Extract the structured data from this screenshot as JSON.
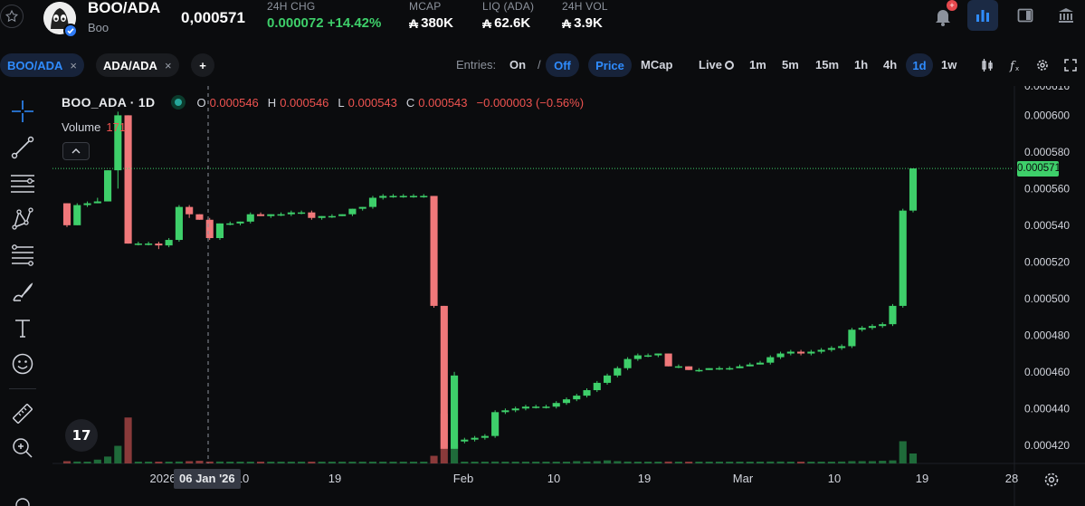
{
  "header": {
    "pair_name": "BOO/ADA",
    "pair_sub": "Boo",
    "price": "0,000571",
    "stats": [
      {
        "label": "24H CHG",
        "value": "0.000072 +14.42%"
      },
      {
        "label": "MCAP",
        "value": "380K"
      },
      {
        "label": "LIQ (ADA)",
        "value": "62.6K"
      },
      {
        "label": "24H VOL",
        "value": "3.9K"
      }
    ],
    "ada_symbol": "₳",
    "notification_badge": "+"
  },
  "toolbar": {
    "tabs": [
      {
        "label": "BOO/ADA",
        "close": "×"
      },
      {
        "label": "ADA/ADA",
        "close": "×"
      }
    ],
    "add_tab": "+",
    "entries_label": "Entries:",
    "entries_on": "On",
    "entries_sep": "/",
    "entries_off": "Off",
    "price_label": "Price",
    "mcap_label": "MCap",
    "live_label": "Live",
    "timeframes": [
      "1m",
      "5m",
      "15m",
      "1h",
      "4h",
      "1d",
      "1w"
    ],
    "active_timeframe": "1d"
  },
  "chart": {
    "symbol": "BOO_ADA · 1D",
    "ohlc": {
      "o_label": "O",
      "o": "0.000546",
      "h_label": "H",
      "h": "0.000546",
      "l_label": "L",
      "l": "0.000543",
      "c_label": "C",
      "c": "0.000543",
      "change": "−0.000003 (−0.56%)"
    },
    "volume_label": "Volume",
    "volume_value": "171",
    "last_price_tag": "0.000571",
    "crosshair_date": "06 Jan '26",
    "top_axis_label": "0.000616",
    "colors": {
      "up": "#3ecf6a",
      "down": "#f0787a",
      "up_vol": "#1f6b3a",
      "down_vol": "#8a3a3a"
    }
  },
  "chart_data": {
    "type": "candlestick",
    "y_tick_labels": [
      "0.000600",
      "0.000580",
      "0.000560",
      "0.000540",
      "0.000520",
      "0.000500",
      "0.000480",
      "0.000460",
      "0.000440",
      "0.000420"
    ],
    "x_tick_labels": [
      "2026",
      "10",
      "19",
      "Feb",
      "10",
      "19",
      "Mar",
      "10",
      "19",
      "28"
    ],
    "ylim": [
      0.00041,
      0.000616
    ],
    "series": [
      {
        "o": 0.000552,
        "h": 0.000552,
        "l": 0.000539,
        "c": 0.00054,
        "v": 6
      },
      {
        "o": 0.00054,
        "h": 0.000552,
        "l": 0.00054,
        "c": 0.000551,
        "v": 5
      },
      {
        "o": 0.000551,
        "h": 0.000553,
        "l": 0.00055,
        "c": 0.000552,
        "v": 4
      },
      {
        "o": 0.000552,
        "h": 0.000555,
        "l": 0.000552,
        "c": 0.000553,
        "v": 10
      },
      {
        "o": 0.000553,
        "h": 0.00057,
        "l": 0.000553,
        "c": 0.00057,
        "v": 18
      },
      {
        "o": 0.00057,
        "h": 0.000602,
        "l": 0.00056,
        "c": 0.0006,
        "v": 46
      },
      {
        "o": 0.0006,
        "h": 0.0006,
        "l": 0.00053,
        "c": 0.00053,
        "v": 120
      },
      {
        "o": 0.00053,
        "h": 0.000531,
        "l": 0.000529,
        "c": 0.00053,
        "v": 4
      },
      {
        "o": 0.00053,
        "h": 0.000531,
        "l": 0.000529,
        "c": 0.00053,
        "v": 3
      },
      {
        "o": 0.00053,
        "h": 0.000531,
        "l": 0.000527,
        "c": 0.000529,
        "v": 4
      },
      {
        "o": 0.000529,
        "h": 0.000533,
        "l": 0.000528,
        "c": 0.000532,
        "v": 4
      },
      {
        "o": 0.000532,
        "h": 0.000551,
        "l": 0.000531,
        "c": 0.00055,
        "v": 5
      },
      {
        "o": 0.00055,
        "h": 0.000551,
        "l": 0.000544,
        "c": 0.000546,
        "v": 6
      },
      {
        "o": 0.000546,
        "h": 0.000546,
        "l": 0.000543,
        "c": 0.000543,
        "v": 7
      },
      {
        "o": 0.000543,
        "h": 0.000544,
        "l": 0.000532,
        "c": 0.000533,
        "v": 5
      },
      {
        "o": 0.000533,
        "h": 0.000541,
        "l": 0.000532,
        "c": 0.000541,
        "v": 5
      },
      {
        "o": 0.000541,
        "h": 0.000542,
        "l": 0.00054,
        "c": 0.000541,
        "v": 3
      },
      {
        "o": 0.000541,
        "h": 0.000542,
        "l": 0.00054,
        "c": 0.000542,
        "v": 3
      },
      {
        "o": 0.000542,
        "h": 0.000547,
        "l": 0.000541,
        "c": 0.000546,
        "v": 4
      },
      {
        "o": 0.000546,
        "h": 0.000547,
        "l": 0.000545,
        "c": 0.000545,
        "v": 3
      },
      {
        "o": 0.000545,
        "h": 0.000546,
        "l": 0.000544,
        "c": 0.000546,
        "v": 3
      },
      {
        "o": 0.000546,
        "h": 0.000547,
        "l": 0.000545,
        "c": 0.000546,
        "v": 3
      },
      {
        "o": 0.000546,
        "h": 0.000548,
        "l": 0.000545,
        "c": 0.000547,
        "v": 3
      },
      {
        "o": 0.000547,
        "h": 0.000548,
        "l": 0.000546,
        "c": 0.000547,
        "v": 3
      },
      {
        "o": 0.000547,
        "h": 0.000548,
        "l": 0.000543,
        "c": 0.000544,
        "v": 3
      },
      {
        "o": 0.000544,
        "h": 0.000545,
        "l": 0.000543,
        "c": 0.000545,
        "v": 3
      },
      {
        "o": 0.000545,
        "h": 0.000546,
        "l": 0.000544,
        "c": 0.000545,
        "v": 3
      },
      {
        "o": 0.000545,
        "h": 0.000546,
        "l": 0.000545,
        "c": 0.000546,
        "v": 3
      },
      {
        "o": 0.000546,
        "h": 0.000549,
        "l": 0.000545,
        "c": 0.000549,
        "v": 3
      },
      {
        "o": 0.000549,
        "h": 0.00055,
        "l": 0.000548,
        "c": 0.00055,
        "v": 3
      },
      {
        "o": 0.00055,
        "h": 0.000556,
        "l": 0.000549,
        "c": 0.000555,
        "v": 4
      },
      {
        "o": 0.000555,
        "h": 0.000557,
        "l": 0.000554,
        "c": 0.000556,
        "v": 3
      },
      {
        "o": 0.000556,
        "h": 0.000557,
        "l": 0.000555,
        "c": 0.000556,
        "v": 3
      },
      {
        "o": 0.000556,
        "h": 0.000557,
        "l": 0.000555,
        "c": 0.000556,
        "v": 3
      },
      {
        "o": 0.000556,
        "h": 0.000557,
        "l": 0.000555,
        "c": 0.000556,
        "v": 3
      },
      {
        "o": 0.000556,
        "h": 0.000557,
        "l": 0.000555,
        "c": 0.000556,
        "v": 3
      },
      {
        "o": 0.000556,
        "h": 0.000556,
        "l": 0.000495,
        "c": 0.000496,
        "v": 20
      },
      {
        "o": 0.000496,
        "h": 0.000496,
        "l": 0.000418,
        "c": 0.000418,
        "v": 130
      },
      {
        "o": 0.000418,
        "h": 0.00046,
        "l": 0.000418,
        "c": 0.000458,
        "v": 50
      },
      {
        "o": 0.000422,
        "h": 0.000424,
        "l": 0.000421,
        "c": 0.000423,
        "v": 4
      },
      {
        "o": 0.000423,
        "h": 0.000425,
        "l": 0.000422,
        "c": 0.000424,
        "v": 4
      },
      {
        "o": 0.000424,
        "h": 0.000426,
        "l": 0.000423,
        "c": 0.000425,
        "v": 4
      },
      {
        "o": 0.000425,
        "h": 0.000439,
        "l": 0.000424,
        "c": 0.000438,
        "v": 5
      },
      {
        "o": 0.000438,
        "h": 0.00044,
        "l": 0.000437,
        "c": 0.000439,
        "v": 4
      },
      {
        "o": 0.000439,
        "h": 0.000441,
        "l": 0.000438,
        "c": 0.00044,
        "v": 4
      },
      {
        "o": 0.00044,
        "h": 0.000442,
        "l": 0.000439,
        "c": 0.000441,
        "v": 4
      },
      {
        "o": 0.000441,
        "h": 0.000442,
        "l": 0.00044,
        "c": 0.000441,
        "v": 4
      },
      {
        "o": 0.000441,
        "h": 0.000442,
        "l": 0.00044,
        "c": 0.000441,
        "v": 4
      },
      {
        "o": 0.000441,
        "h": 0.000444,
        "l": 0.00044,
        "c": 0.000443,
        "v": 4
      },
      {
        "o": 0.000443,
        "h": 0.000446,
        "l": 0.000442,
        "c": 0.000445,
        "v": 4
      },
      {
        "o": 0.000445,
        "h": 0.000448,
        "l": 0.000444,
        "c": 0.000447,
        "v": 6
      },
      {
        "o": 0.000447,
        "h": 0.000451,
        "l": 0.000446,
        "c": 0.00045,
        "v": 5
      },
      {
        "o": 0.00045,
        "h": 0.000455,
        "l": 0.000449,
        "c": 0.000454,
        "v": 6
      },
      {
        "o": 0.000454,
        "h": 0.000459,
        "l": 0.000453,
        "c": 0.000458,
        "v": 8
      },
      {
        "o": 0.000458,
        "h": 0.000463,
        "l": 0.000457,
        "c": 0.000462,
        "v": 6
      },
      {
        "o": 0.000462,
        "h": 0.000468,
        "l": 0.000461,
        "c": 0.000467,
        "v": 5
      },
      {
        "o": 0.000467,
        "h": 0.00047,
        "l": 0.000466,
        "c": 0.000469,
        "v": 4
      },
      {
        "o": 0.000469,
        "h": 0.00047,
        "l": 0.000468,
        "c": 0.000469,
        "v": 4
      },
      {
        "o": 0.000469,
        "h": 0.00047,
        "l": 0.000468,
        "c": 0.00047,
        "v": 4
      },
      {
        "o": 0.00047,
        "h": 0.00047,
        "l": 0.000463,
        "c": 0.000463,
        "v": 5
      },
      {
        "o": 0.000463,
        "h": 0.000464,
        "l": 0.000462,
        "c": 0.000463,
        "v": 4
      },
      {
        "o": 0.000463,
        "h": 0.000463,
        "l": 0.000461,
        "c": 0.000461,
        "v": 4
      },
      {
        "o": 0.000461,
        "h": 0.000462,
        "l": 0.00046,
        "c": 0.000461,
        "v": 4
      },
      {
        "o": 0.000461,
        "h": 0.000462,
        "l": 0.000461,
        "c": 0.000462,
        "v": 3
      },
      {
        "o": 0.000462,
        "h": 0.000463,
        "l": 0.000461,
        "c": 0.000462,
        "v": 3
      },
      {
        "o": 0.000462,
        "h": 0.000463,
        "l": 0.000461,
        "c": 0.000462,
        "v": 3
      },
      {
        "o": 0.000462,
        "h": 0.000464,
        "l": 0.000462,
        "c": 0.000463,
        "v": 3
      },
      {
        "o": 0.000463,
        "h": 0.000465,
        "l": 0.000463,
        "c": 0.000464,
        "v": 3
      },
      {
        "o": 0.000464,
        "h": 0.000466,
        "l": 0.000464,
        "c": 0.000465,
        "v": 3
      },
      {
        "o": 0.000465,
        "h": 0.000469,
        "l": 0.000464,
        "c": 0.000468,
        "v": 5
      },
      {
        "o": 0.000468,
        "h": 0.000471,
        "l": 0.000467,
        "c": 0.00047,
        "v": 5
      },
      {
        "o": 0.00047,
        "h": 0.000472,
        "l": 0.000469,
        "c": 0.000471,
        "v": 4
      },
      {
        "o": 0.000471,
        "h": 0.000472,
        "l": 0.000469,
        "c": 0.00047,
        "v": 4
      },
      {
        "o": 0.00047,
        "h": 0.000472,
        "l": 0.000469,
        "c": 0.000471,
        "v": 4
      },
      {
        "o": 0.000471,
        "h": 0.000473,
        "l": 0.00047,
        "c": 0.000472,
        "v": 4
      },
      {
        "o": 0.000472,
        "h": 0.000474,
        "l": 0.000471,
        "c": 0.000473,
        "v": 4
      },
      {
        "o": 0.000473,
        "h": 0.000475,
        "l": 0.000472,
        "c": 0.000474,
        "v": 5
      },
      {
        "o": 0.000474,
        "h": 0.000484,
        "l": 0.000473,
        "c": 0.000483,
        "v": 6
      },
      {
        "o": 0.000483,
        "h": 0.000485,
        "l": 0.000482,
        "c": 0.000484,
        "v": 6
      },
      {
        "o": 0.000484,
        "h": 0.000486,
        "l": 0.000483,
        "c": 0.000485,
        "v": 6
      },
      {
        "o": 0.000485,
        "h": 0.000487,
        "l": 0.000484,
        "c": 0.000486,
        "v": 7
      },
      {
        "o": 0.000486,
        "h": 0.000497,
        "l": 0.000485,
        "c": 0.000496,
        "v": 8
      },
      {
        "o": 0.000496,
        "h": 0.000549,
        "l": 0.000495,
        "c": 0.000548,
        "v": 58
      },
      {
        "o": 0.000548,
        "h": 0.000571,
        "l": 0.000547,
        "c": 0.000571,
        "v": 26
      }
    ]
  },
  "left_tools": [
    "crosshair-icon",
    "trendline-icon",
    "horizontal-lines-icon",
    "pattern-icon",
    "fib-icon",
    "brush-icon",
    "text-icon",
    "emoji-icon",
    "ruler-icon",
    "zoom-in-icon"
  ]
}
